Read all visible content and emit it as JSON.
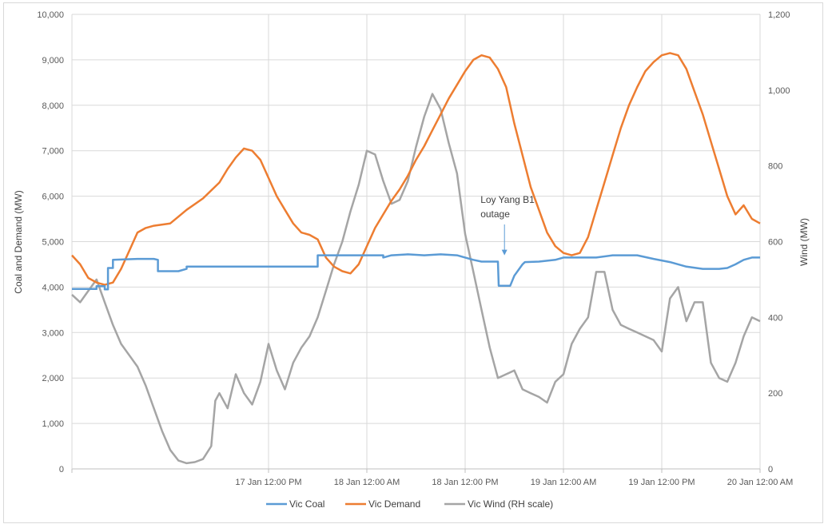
{
  "chart_data": {
    "type": "line",
    "ylabel_left": "Coal and Demand (MW)",
    "ylabel_right": "Wind (MW)",
    "ylim_left": [
      0,
      10000
    ],
    "ylim_right": [
      0,
      1200
    ],
    "yticks_left": [
      "0",
      "1,000",
      "2,000",
      "3,000",
      "4,000",
      "5,000",
      "6,000",
      "7,000",
      "8,000",
      "9,000",
      "10,000"
    ],
    "yticks_right": [
      "0",
      "200",
      "400",
      "600",
      "800",
      "1,000",
      "1,200"
    ],
    "x_unit": "hours from 17 Jan 12:00 AM",
    "xlim": [
      -12,
      72
    ],
    "xticks": [
      {
        "x": 12,
        "label": "17 Jan 12:00 PM"
      },
      {
        "x": 24,
        "label": "18 Jan 12:00 AM"
      },
      {
        "x": 36,
        "label": "18 Jan 12:00 PM"
      },
      {
        "x": 48,
        "label": "19 Jan 12:00 AM"
      },
      {
        "x": 60,
        "label": "19 Jan 12:00 PM"
      },
      {
        "x": 72,
        "label": "20 Jan 12:00 AM"
      }
    ],
    "grid": true,
    "legend_position": "bottom",
    "annotation": {
      "text_lines": [
        "Loy Yang B1",
        "outage"
      ],
      "x": 40.8,
      "y": 4700
    },
    "series": [
      {
        "name": "Vic Coal",
        "color": "#5b9bd5",
        "axis": "left",
        "points": [
          [
            -12,
            3960
          ],
          [
            -9,
            3960
          ],
          [
            -9,
            4020
          ],
          [
            -8,
            4020
          ],
          [
            -8,
            3950
          ],
          [
            -7.6,
            3950
          ],
          [
            -7.6,
            4420
          ],
          [
            -7,
            4420
          ],
          [
            -7,
            4600
          ],
          [
            -4,
            4620
          ],
          [
            -2,
            4620
          ],
          [
            -1.5,
            4600
          ],
          [
            -1.5,
            4350
          ],
          [
            1,
            4350
          ],
          [
            2,
            4400
          ],
          [
            2,
            4450
          ],
          [
            6,
            4450
          ],
          [
            12,
            4450
          ],
          [
            15,
            4450
          ],
          [
            17,
            4450
          ],
          [
            18,
            4450
          ],
          [
            18,
            4700
          ],
          [
            20,
            4700
          ],
          [
            21,
            4700
          ],
          [
            22,
            4700
          ],
          [
            24,
            4700
          ],
          [
            26,
            4700
          ],
          [
            26,
            4650
          ],
          [
            27,
            4700
          ],
          [
            29,
            4720
          ],
          [
            31,
            4700
          ],
          [
            33,
            4720
          ],
          [
            35,
            4700
          ],
          [
            36,
            4650
          ],
          [
            37,
            4600
          ],
          [
            38,
            4560
          ],
          [
            39,
            4560
          ],
          [
            40,
            4560
          ],
          [
            40.1,
            4030
          ],
          [
            41,
            4030
          ],
          [
            41.5,
            4030
          ],
          [
            42,
            4250
          ],
          [
            43,
            4500
          ],
          [
            43.3,
            4550
          ],
          [
            45,
            4560
          ],
          [
            47,
            4600
          ],
          [
            48,
            4650
          ],
          [
            50,
            4650
          ],
          [
            52,
            4650
          ],
          [
            54,
            4700
          ],
          [
            56,
            4700
          ],
          [
            57,
            4700
          ],
          [
            59,
            4620
          ],
          [
            61,
            4550
          ],
          [
            63,
            4450
          ],
          [
            65,
            4400
          ],
          [
            67,
            4400
          ],
          [
            68,
            4420
          ],
          [
            69,
            4500
          ],
          [
            70,
            4600
          ],
          [
            71,
            4650
          ],
          [
            72,
            4650
          ]
        ]
      },
      {
        "name": "Vic Demand",
        "color": "#ed7d31",
        "axis": "left",
        "points": [
          [
            -12,
            4700
          ],
          [
            -11,
            4500
          ],
          [
            -10,
            4200
          ],
          [
            -9,
            4100
          ],
          [
            -8,
            4050
          ],
          [
            -7,
            4100
          ],
          [
            -6,
            4400
          ],
          [
            -5,
            4800
          ],
          [
            -4,
            5200
          ],
          [
            -3,
            5300
          ],
          [
            -2,
            5350
          ],
          [
            0,
            5400
          ],
          [
            1,
            5550
          ],
          [
            2,
            5700
          ],
          [
            4,
            5950
          ],
          [
            6,
            6300
          ],
          [
            7,
            6600
          ],
          [
            8,
            6850
          ],
          [
            9,
            7050
          ],
          [
            10,
            7000
          ],
          [
            11,
            6800
          ],
          [
            12,
            6400
          ],
          [
            13,
            6000
          ],
          [
            14,
            5700
          ],
          [
            15,
            5400
          ],
          [
            16,
            5200
          ],
          [
            17,
            5150
          ],
          [
            18,
            5050
          ],
          [
            19,
            4650
          ],
          [
            20,
            4450
          ],
          [
            21,
            4350
          ],
          [
            22,
            4300
          ],
          [
            23,
            4500
          ],
          [
            24,
            4900
          ],
          [
            25,
            5300
          ],
          [
            26,
            5600
          ],
          [
            27,
            5900
          ],
          [
            28,
            6150
          ],
          [
            29,
            6450
          ],
          [
            30,
            6800
          ],
          [
            31,
            7100
          ],
          [
            32,
            7450
          ],
          [
            33,
            7800
          ],
          [
            34,
            8150
          ],
          [
            35,
            8450
          ],
          [
            36,
            8750
          ],
          [
            37,
            9000
          ],
          [
            38,
            9100
          ],
          [
            39,
            9050
          ],
          [
            40,
            8800
          ],
          [
            41,
            8400
          ],
          [
            42,
            7600
          ],
          [
            43,
            6900
          ],
          [
            44,
            6200
          ],
          [
            45,
            5700
          ],
          [
            46,
            5200
          ],
          [
            47,
            4900
          ],
          [
            48,
            4750
          ],
          [
            49,
            4700
          ],
          [
            50,
            4750
          ],
          [
            51,
            5100
          ],
          [
            52,
            5700
          ],
          [
            53,
            6300
          ],
          [
            54,
            6900
          ],
          [
            55,
            7500
          ],
          [
            56,
            8000
          ],
          [
            57,
            8400
          ],
          [
            58,
            8750
          ],
          [
            59,
            8950
          ],
          [
            60,
            9100
          ],
          [
            61,
            9150
          ],
          [
            62,
            9100
          ],
          [
            63,
            8800
          ],
          [
            64,
            8300
          ],
          [
            65,
            7800
          ],
          [
            66,
            7200
          ],
          [
            67,
            6600
          ],
          [
            68,
            6000
          ],
          [
            69,
            5600
          ],
          [
            70,
            5800
          ],
          [
            71,
            5500
          ],
          [
            72,
            5400
          ]
        ]
      },
      {
        "name": "Vic Wind (RH scale)",
        "color": "#a5a5a5",
        "axis": "right",
        "points": [
          [
            -12,
            460
          ],
          [
            -11,
            440
          ],
          [
            -10,
            470
          ],
          [
            -9,
            500
          ],
          [
            -8,
            440
          ],
          [
            -7,
            380
          ],
          [
            -6,
            330
          ],
          [
            -5,
            300
          ],
          [
            -4,
            270
          ],
          [
            -3,
            220
          ],
          [
            -2,
            160
          ],
          [
            -1,
            100
          ],
          [
            0,
            50
          ],
          [
            1,
            22
          ],
          [
            2,
            15
          ],
          [
            3,
            18
          ],
          [
            4,
            26
          ],
          [
            5,
            60
          ],
          [
            5.5,
            180
          ],
          [
            6,
            200
          ],
          [
            7,
            160
          ],
          [
            8,
            250
          ],
          [
            9,
            200
          ],
          [
            10,
            170
          ],
          [
            11,
            230
          ],
          [
            12,
            330
          ],
          [
            13,
            260
          ],
          [
            14,
            210
          ],
          [
            15,
            280
          ],
          [
            16,
            320
          ],
          [
            17,
            350
          ],
          [
            18,
            400
          ],
          [
            19,
            470
          ],
          [
            20,
            540
          ],
          [
            21,
            600
          ],
          [
            22,
            680
          ],
          [
            23,
            750
          ],
          [
            24,
            840
          ],
          [
            25,
            830
          ],
          [
            26,
            760
          ],
          [
            27,
            700
          ],
          [
            28,
            710
          ],
          [
            29,
            760
          ],
          [
            30,
            850
          ],
          [
            31,
            930
          ],
          [
            32,
            990
          ],
          [
            33,
            950
          ],
          [
            34,
            860
          ],
          [
            35,
            780
          ],
          [
            35.5,
            700
          ],
          [
            36,
            620
          ],
          [
            37,
            520
          ],
          [
            38,
            420
          ],
          [
            39,
            320
          ],
          [
            40,
            240
          ],
          [
            41,
            250
          ],
          [
            42,
            260
          ],
          [
            43,
            210
          ],
          [
            44,
            200
          ],
          [
            45,
            190
          ],
          [
            46,
            175
          ],
          [
            47,
            230
          ],
          [
            48,
            250
          ],
          [
            49,
            330
          ],
          [
            50,
            370
          ],
          [
            51,
            400
          ],
          [
            52,
            520
          ],
          [
            53,
            520
          ],
          [
            54,
            420
          ],
          [
            55,
            380
          ],
          [
            56,
            370
          ],
          [
            57,
            360
          ],
          [
            58,
            350
          ],
          [
            59,
            340
          ],
          [
            60,
            310
          ],
          [
            61,
            450
          ],
          [
            62,
            480
          ],
          [
            63,
            390
          ],
          [
            64,
            440
          ],
          [
            65,
            440
          ],
          [
            66,
            280
          ],
          [
            67,
            240
          ],
          [
            68,
            230
          ],
          [
            69,
            280
          ],
          [
            70,
            350
          ],
          [
            71,
            400
          ],
          [
            72,
            390
          ]
        ]
      }
    ]
  }
}
